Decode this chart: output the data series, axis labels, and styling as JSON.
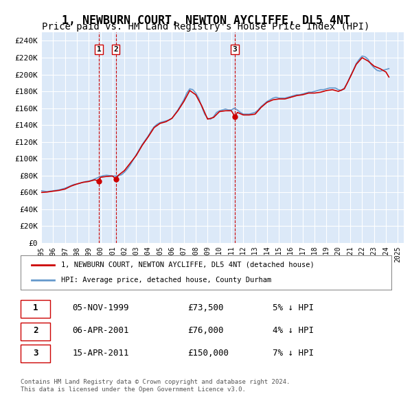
{
  "title": "1, NEWBURN COURT, NEWTON AYCLIFFE, DL5 4NT",
  "subtitle": "Price paid vs. HM Land Registry's House Price Index (HPI)",
  "title_fontsize": 12,
  "subtitle_fontsize": 10,
  "ylabel_ticks": [
    "£0",
    "£20K",
    "£40K",
    "£60K",
    "£80K",
    "£100K",
    "£120K",
    "£140K",
    "£160K",
    "£180K",
    "£200K",
    "£220K",
    "£240K"
  ],
  "ytick_values": [
    0,
    20000,
    40000,
    60000,
    80000,
    100000,
    120000,
    140000,
    160000,
    180000,
    200000,
    220000,
    240000
  ],
  "ylim": [
    0,
    250000
  ],
  "background_color": "#dce9f8",
  "plot_bg_color": "#dce9f8",
  "grid_color": "#ffffff",
  "sale_color": "#cc0000",
  "hpi_color": "#6699cc",
  "legend_label_sale": "1, NEWBURN COURT, NEWTON AYCLIFFE, DL5 4NT (detached house)",
  "legend_label_hpi": "HPI: Average price, detached house, County Durham",
  "transactions": [
    {
      "num": 1,
      "date": "05-NOV-1999",
      "price": 73500,
      "note": "5% ↓ HPI",
      "x_year": 1999.85
    },
    {
      "num": 2,
      "date": "06-APR-2001",
      "price": 76000,
      "note": "4% ↓ HPI",
      "x_year": 2001.27
    },
    {
      "num": 3,
      "date": "15-APR-2011",
      "price": 150000,
      "note": "7% ↓ HPI",
      "x_year": 2011.29
    }
  ],
  "footer_line1": "Contains HM Land Registry data © Crown copyright and database right 2024.",
  "footer_line2": "This data is licensed under the Open Government Licence v3.0.",
  "hpi_data": {
    "years": [
      1995.0,
      1995.25,
      1995.5,
      1995.75,
      1996.0,
      1996.25,
      1996.5,
      1996.75,
      1997.0,
      1997.25,
      1997.5,
      1997.75,
      1998.0,
      1998.25,
      1998.5,
      1998.75,
      1999.0,
      1999.25,
      1999.5,
      1999.75,
      2000.0,
      2000.25,
      2000.5,
      2000.75,
      2001.0,
      2001.25,
      2001.5,
      2001.75,
      2002.0,
      2002.25,
      2002.5,
      2002.75,
      2003.0,
      2003.25,
      2003.5,
      2003.75,
      2004.0,
      2004.25,
      2004.5,
      2004.75,
      2005.0,
      2005.25,
      2005.5,
      2005.75,
      2006.0,
      2006.25,
      2006.5,
      2006.75,
      2007.0,
      2007.25,
      2007.5,
      2007.75,
      2008.0,
      2008.25,
      2008.5,
      2008.75,
      2009.0,
      2009.25,
      2009.5,
      2009.75,
      2010.0,
      2010.25,
      2010.5,
      2010.75,
      2011.0,
      2011.25,
      2011.5,
      2011.75,
      2012.0,
      2012.25,
      2012.5,
      2012.75,
      2013.0,
      2013.25,
      2013.5,
      2013.75,
      2014.0,
      2014.25,
      2014.5,
      2014.75,
      2015.0,
      2015.25,
      2015.5,
      2015.75,
      2016.0,
      2016.25,
      2016.5,
      2016.75,
      2017.0,
      2017.25,
      2017.5,
      2017.75,
      2018.0,
      2018.25,
      2018.5,
      2018.75,
      2019.0,
      2019.25,
      2019.5,
      2019.75,
      2020.0,
      2020.25,
      2020.5,
      2020.75,
      2021.0,
      2021.25,
      2021.5,
      2021.75,
      2022.0,
      2022.25,
      2022.5,
      2022.75,
      2023.0,
      2023.25,
      2023.5,
      2023.75,
      2024.0,
      2024.25
    ],
    "values": [
      62000,
      61500,
      61000,
      61500,
      62000,
      62500,
      63000,
      64000,
      65000,
      66500,
      68000,
      69500,
      70000,
      71000,
      72000,
      73000,
      73500,
      74500,
      76000,
      77500,
      79000,
      80000,
      80500,
      80000,
      79500,
      79500,
      80000,
      81000,
      84000,
      88000,
      93000,
      99000,
      105000,
      111000,
      117000,
      122000,
      127000,
      133000,
      138000,
      141000,
      143000,
      144000,
      145000,
      146000,
      148000,
      153000,
      158000,
      164000,
      170000,
      178000,
      183000,
      182000,
      178000,
      172000,
      162000,
      153000,
      148000,
      147000,
      150000,
      155000,
      157000,
      158000,
      159000,
      158000,
      158000,
      160000,
      158000,
      155000,
      153000,
      153000,
      153000,
      154000,
      155000,
      158000,
      162000,
      165000,
      168000,
      170000,
      172000,
      173000,
      172000,
      172000,
      172000,
      173000,
      174000,
      175000,
      176000,
      176000,
      177000,
      178000,
      179000,
      179000,
      180000,
      181000,
      182000,
      182000,
      183000,
      184000,
      184000,
      184000,
      182000,
      181000,
      184000,
      190000,
      198000,
      205000,
      213000,
      218000,
      222000,
      221000,
      218000,
      212000,
      208000,
      205000,
      204000,
      205000,
      206000,
      207000
    ]
  },
  "sale_data": {
    "years": [
      1995.0,
      1995.5,
      1996.0,
      1996.5,
      1997.0,
      1997.5,
      1998.0,
      1998.5,
      1999.0,
      1999.5,
      1999.85,
      2000.0,
      2000.5,
      2001.0,
      2001.27,
      2001.5,
      2002.0,
      2002.5,
      2003.0,
      2003.5,
      2004.0,
      2004.5,
      2005.0,
      2005.5,
      2006.0,
      2006.5,
      2007.0,
      2007.5,
      2008.0,
      2008.5,
      2009.0,
      2009.5,
      2010.0,
      2010.5,
      2011.0,
      2011.29,
      2011.5,
      2012.0,
      2012.5,
      2013.0,
      2013.5,
      2014.0,
      2014.5,
      2015.0,
      2015.5,
      2016.0,
      2016.5,
      2017.0,
      2017.5,
      2018.0,
      2018.5,
      2019.0,
      2019.5,
      2020.0,
      2020.5,
      2021.0,
      2021.5,
      2022.0,
      2022.5,
      2023.0,
      2023.5,
      2024.0,
      2024.25
    ],
    "values": [
      60000,
      60500,
      61500,
      62500,
      64000,
      67500,
      70000,
      72000,
      73000,
      75000,
      73500,
      78000,
      79000,
      79500,
      76000,
      80500,
      86000,
      95000,
      104000,
      116000,
      126000,
      137000,
      142000,
      144000,
      148000,
      157000,
      168000,
      181000,
      176000,
      163000,
      147000,
      149000,
      156000,
      157000,
      157000,
      150000,
      155000,
      152000,
      152000,
      153000,
      161000,
      167000,
      170000,
      171000,
      171000,
      173000,
      175000,
      176000,
      178000,
      178000,
      179000,
      181000,
      182000,
      180000,
      183000,
      197000,
      212000,
      220000,
      216000,
      210000,
      207000,
      203000,
      197000
    ]
  },
  "xtick_years": [
    1995,
    1996,
    1997,
    1998,
    1999,
    2000,
    2001,
    2002,
    2003,
    2004,
    2005,
    2006,
    2007,
    2008,
    2009,
    2010,
    2011,
    2012,
    2013,
    2014,
    2015,
    2016,
    2017,
    2018,
    2019,
    2020,
    2021,
    2022,
    2023,
    2024,
    2025
  ],
  "vline_x": [
    1999.85,
    2001.27,
    2011.29
  ],
  "vline_color": "#cc0000"
}
